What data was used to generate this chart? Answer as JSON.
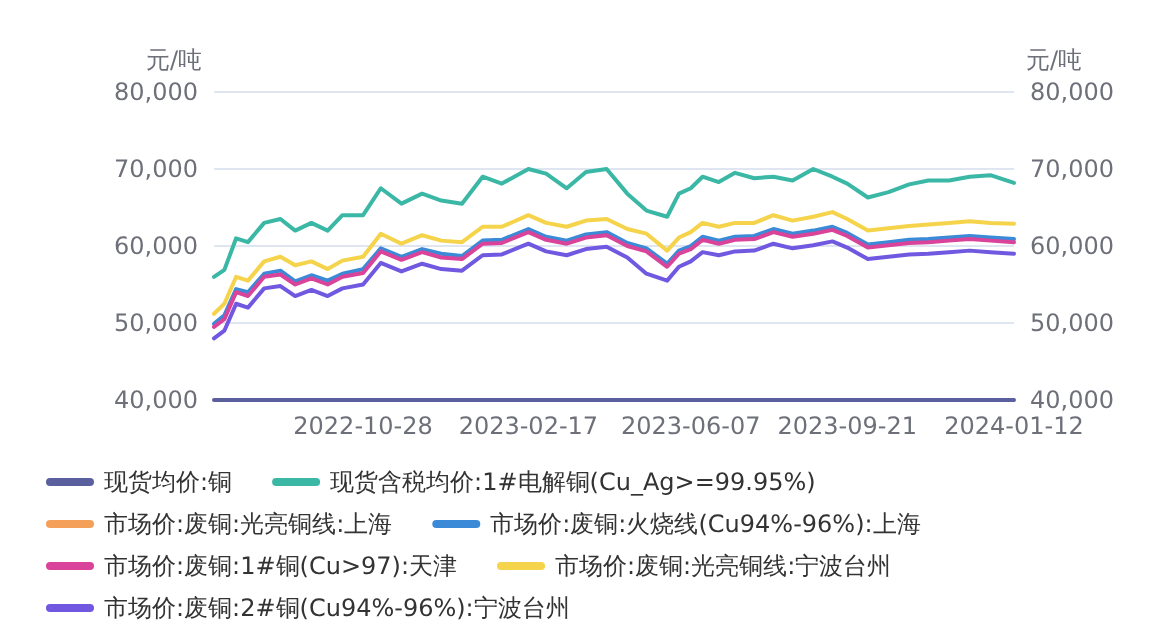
{
  "chart_data": {
    "type": "line",
    "ylabel": "元/吨",
    "y2label": "元/吨",
    "x": [
      "2022-07-19",
      "2022-07-26",
      "2022-08-03",
      "2022-08-11",
      "2022-08-22",
      "2022-09-02",
      "2022-09-12",
      "2022-09-23",
      "2022-10-04",
      "2022-10-14",
      "2022-10-28",
      "2022-11-09",
      "2022-11-23",
      "2022-12-07",
      "2022-12-20",
      "2023-01-03",
      "2023-01-17",
      "2023-01-30",
      "2023-02-17",
      "2023-03-01",
      "2023-03-15",
      "2023-03-28",
      "2023-04-11",
      "2023-04-25",
      "2023-05-08",
      "2023-05-22",
      "2023-05-30",
      "2023-06-07",
      "2023-06-15",
      "2023-06-26",
      "2023-07-07",
      "2023-07-20",
      "2023-08-02",
      "2023-08-15",
      "2023-08-29",
      "2023-09-11",
      "2023-09-21",
      "2023-10-05",
      "2023-10-19",
      "2023-11-02",
      "2023-11-15",
      "2023-11-29",
      "2023-12-13",
      "2023-12-27",
      "2024-01-12"
    ],
    "xlim": [
      "2022-07-19",
      "2024-01-12"
    ],
    "xticks": [
      "2022-10-28",
      "2023-02-17",
      "2023-06-07",
      "2023-09-21",
      "2024-01-12"
    ],
    "ylim": [
      40000,
      80000
    ],
    "yticks": [
      {
        "value": 40000,
        "label": "40,000"
      },
      {
        "value": 50000,
        "label": "50,000"
      },
      {
        "value": 60000,
        "label": "60,000"
      },
      {
        "value": 70000,
        "label": "70,000"
      },
      {
        "value": 80000,
        "label": "80,000"
      }
    ],
    "y2lim": [
      40000,
      80000
    ],
    "y2ticks": [
      {
        "value": 40000,
        "label": "40,000"
      },
      {
        "value": 50000,
        "label": "50,000"
      },
      {
        "value": 60000,
        "label": "60,000"
      },
      {
        "value": 70000,
        "label": "70,000"
      },
      {
        "value": 80000,
        "label": "80,000"
      }
    ],
    "grid": "y",
    "legend": "bottom",
    "marker": "none",
    "line_style": "solid",
    "series": [
      {
        "name": "现货均价:铜",
        "color": "#5a5f9e",
        "x": [
          "2022-07-19",
          "2024-01-12"
        ],
        "values": [
          40000,
          40000
        ]
      },
      {
        "name": "现货含税均价:1#电解铜(Cu_Ag>=99.95%)",
        "color": "#3bb7a6",
        "values": [
          56000,
          56900,
          61000,
          60500,
          63000,
          63500,
          62000,
          63000,
          62000,
          64000,
          64000,
          67500,
          65500,
          66800,
          65900,
          65500,
          69000,
          68100,
          70000,
          69400,
          67500,
          69600,
          70000,
          66800,
          64600,
          63800,
          66800,
          67500,
          69000,
          68300,
          69500,
          68800,
          69000,
          68500,
          70000,
          69000,
          68100,
          66300,
          67000,
          68000,
          68500,
          68500,
          69000,
          69200,
          68200
        ]
      },
      {
        "name": "市场价:废铜:光亮铜线:上海",
        "color": "#f5a05a",
        "values": [
          null,
          null,
          null,
          null,
          null,
          null,
          null,
          null,
          null,
          null,
          null,
          null,
          null,
          null,
          null,
          null,
          null,
          null,
          null,
          null,
          null,
          null,
          null,
          null,
          null,
          null,
          null,
          null,
          null,
          null,
          null,
          null,
          null,
          null,
          null,
          null,
          null,
          null,
          null,
          null,
          null,
          null,
          null,
          null,
          null
        ]
      },
      {
        "name": "市场价:废铜:火烧线(Cu94%-96%):上海",
        "color": "#3a8ad8",
        "values": [
          49900,
          51000,
          54400,
          54000,
          56400,
          56800,
          55400,
          56200,
          55500,
          56400,
          57000,
          59700,
          58600,
          59600,
          59000,
          58700,
          60700,
          60800,
          62200,
          61200,
          60700,
          61500,
          61800,
          60400,
          59700,
          57700,
          59400,
          60000,
          61200,
          60700,
          61200,
          61300,
          62200,
          61600,
          62000,
          62500,
          61700,
          60200,
          60500,
          60800,
          60900,
          61100,
          61300,
          61100,
          60900
        ]
      },
      {
        "name": "市场价:废铜:1#铜(Cu>97):天津",
        "color": "#d9449a",
        "values": [
          49500,
          50500,
          54000,
          53500,
          56000,
          56300,
          55000,
          55800,
          55000,
          56000,
          56500,
          59300,
          58200,
          59200,
          58500,
          58300,
          60300,
          60400,
          61800,
          60800,
          60300,
          61100,
          61400,
          60000,
          59300,
          57300,
          59000,
          59600,
          60800,
          60300,
          60800,
          60900,
          61800,
          61200,
          61600,
          62100,
          61300,
          59800,
          60100,
          60400,
          60500,
          60700,
          60900,
          60700,
          60500
        ]
      },
      {
        "name": "市场价:废铜:光亮铜线:宁波台州",
        "color": "#f5d34a",
        "values": [
          51200,
          52500,
          56000,
          55500,
          58000,
          58600,
          57500,
          58000,
          57000,
          58100,
          58600,
          61600,
          60300,
          61400,
          60700,
          60500,
          62500,
          62500,
          64000,
          63000,
          62500,
          63300,
          63500,
          62200,
          61600,
          59400,
          61100,
          61800,
          63000,
          62500,
          63000,
          63000,
          64000,
          63300,
          63800,
          64400,
          63500,
          62000,
          62300,
          62600,
          62800,
          63000,
          63200,
          63000,
          62900
        ]
      },
      {
        "name": "市场价:废铜:2#铜(Cu94%-96%):宁波台州",
        "color": "#7059e0",
        "values": [
          48000,
          49000,
          52500,
          52000,
          54500,
          54800,
          53500,
          54300,
          53500,
          54500,
          55000,
          57800,
          56700,
          57700,
          57000,
          56800,
          58800,
          58900,
          60300,
          59300,
          58800,
          59600,
          59900,
          58500,
          56400,
          55500,
          57300,
          58000,
          59200,
          58800,
          59300,
          59400,
          60300,
          59700,
          60100,
          60600,
          59800,
          58300,
          58600,
          58900,
          59000,
          59200,
          59400,
          59200,
          59000
        ]
      }
    ]
  }
}
